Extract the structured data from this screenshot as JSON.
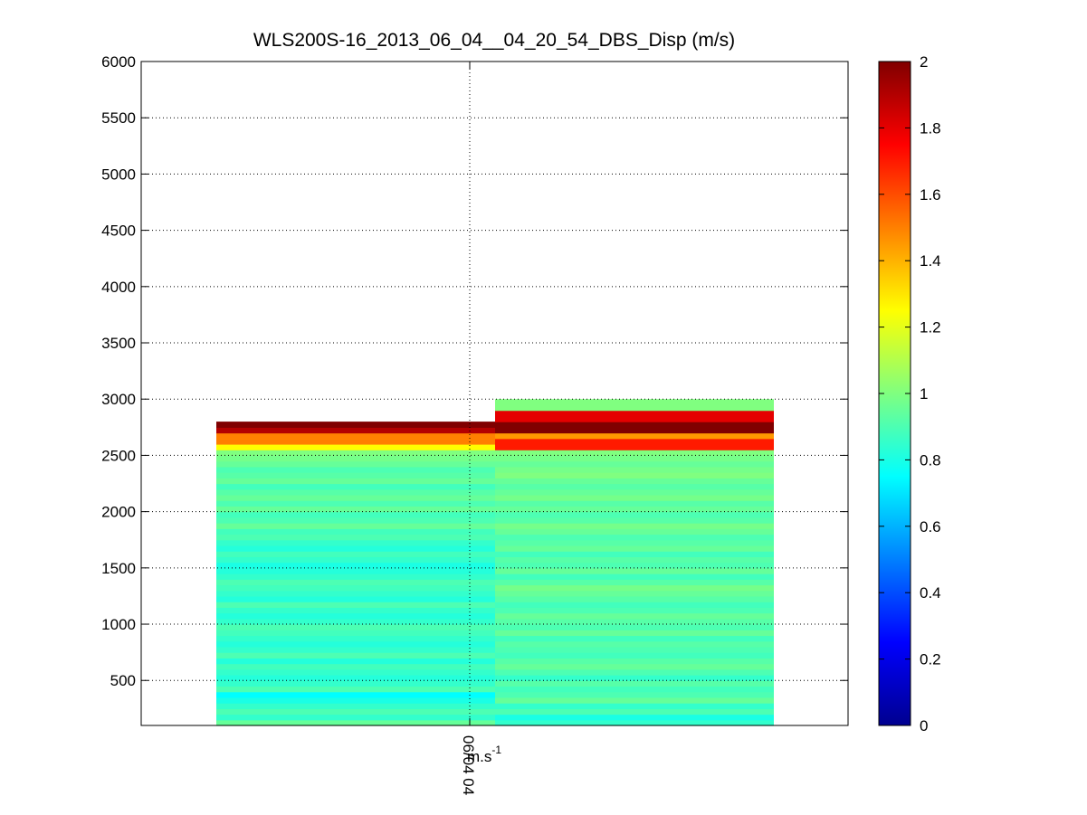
{
  "chart_data": {
    "type": "heatmap",
    "title": "WLS200S-16_2013_06_04__04_20_54_DBS_Disp (m/s)",
    "xlabel": "m.s-1",
    "xlabel_base": "m.s",
    "xlabel_sup": "-1",
    "x_tick_labels": [
      "06/04 04"
    ],
    "ylim": [
      100,
      6000
    ],
    "y_ticks": [
      500,
      1000,
      1500,
      2000,
      2500,
      3000,
      3500,
      4000,
      4500,
      5000,
      5500,
      6000
    ],
    "grid": true,
    "colormap": "jet",
    "colorbar": {
      "range": [
        0,
        2
      ],
      "ticks": [
        "0",
        "0.2",
        "0.4",
        "0.6",
        "0.8",
        "1",
        "1.2",
        "1.4",
        "1.6",
        "1.8",
        "2"
      ]
    },
    "altitude_bin": 50,
    "columns": [
      {
        "profile": 1,
        "bottom": 100,
        "top": 2600,
        "values": [
          0.95,
          0.85,
          0.9,
          0.85,
          0.8,
          0.75,
          0.9,
          0.85,
          0.82,
          0.85,
          0.88,
          0.82,
          0.9,
          0.85,
          0.82,
          0.85,
          0.88,
          0.9,
          0.85,
          0.82,
          0.85,
          0.9,
          0.82,
          0.85,
          0.88,
          0.9,
          0.85,
          0.82,
          0.8,
          0.85,
          0.88,
          0.82,
          0.85,
          0.9,
          0.88,
          0.95,
          0.9,
          0.88,
          0.95,
          0.9,
          0.95,
          0.92,
          0.88,
          0.95,
          0.92,
          0.9,
          0.95,
          0.98,
          1.0,
          1.25,
          1.5,
          1.5,
          1.9,
          2.0
        ]
      },
      {
        "profile": 2,
        "bottom": 100,
        "top": 2800,
        "values": [
          0.85,
          0.8,
          0.9,
          0.85,
          0.95,
          0.9,
          0.88,
          0.92,
          0.85,
          0.9,
          0.95,
          0.92,
          0.88,
          0.9,
          0.92,
          0.88,
          0.95,
          0.9,
          0.92,
          0.95,
          0.9,
          0.88,
          0.92,
          0.95,
          0.98,
          0.92,
          0.88,
          0.95,
          0.9,
          0.92,
          0.88,
          0.95,
          0.92,
          0.9,
          0.95,
          0.98,
          0.92,
          0.9,
          0.95,
          0.92,
          0.98,
          0.95,
          0.92,
          0.95,
          1.0,
          0.98,
          0.95,
          0.98,
          1.0,
          1.7,
          1.7,
          1.45,
          2.0,
          2.0,
          1.8,
          1.8,
          1.0,
          1.0
        ]
      }
    ]
  }
}
